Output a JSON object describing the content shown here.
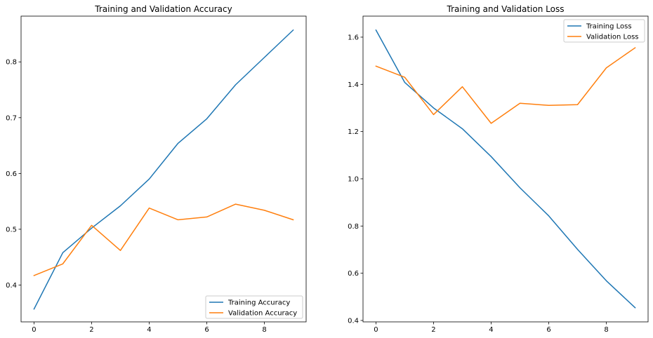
{
  "chart_data": [
    {
      "type": "line",
      "title": "Training and Validation Accuracy",
      "xlabel": "",
      "ylabel": "",
      "x": [
        0,
        1,
        2,
        3,
        4,
        5,
        6,
        7,
        8,
        9
      ],
      "xlim": [
        -0.45,
        9.45
      ],
      "ylim": [
        0.334,
        0.882
      ],
      "xticks": [
        0,
        2,
        4,
        6,
        8
      ],
      "yticks": [
        0.4,
        0.5,
        0.6,
        0.7,
        0.8
      ],
      "xtick_labels": [
        "0",
        "2",
        "4",
        "6",
        "8"
      ],
      "ytick_labels": [
        "0.4",
        "0.5",
        "0.6",
        "0.7",
        "0.8"
      ],
      "grid": false,
      "legend_position": "lower right",
      "series": [
        {
          "name": "Training Accuracy",
          "color": "#1f77b4",
          "values": [
            0.357,
            0.458,
            0.502,
            0.542,
            0.59,
            0.654,
            0.698,
            0.759,
            0.808,
            0.857
          ]
        },
        {
          "name": "Validation Accuracy",
          "color": "#ff7f0e",
          "values": [
            0.417,
            0.438,
            0.507,
            0.462,
            0.538,
            0.517,
            0.522,
            0.545,
            0.534,
            0.517
          ]
        }
      ]
    },
    {
      "type": "line",
      "title": "Training and Validation Loss",
      "xlabel": "",
      "ylabel": "",
      "x": [
        0,
        1,
        2,
        3,
        4,
        5,
        6,
        7,
        8,
        9
      ],
      "xlim": [
        -0.45,
        9.45
      ],
      "ylim": [
        0.394,
        1.689
      ],
      "xticks": [
        0,
        2,
        4,
        6,
        8
      ],
      "yticks": [
        0.4,
        0.6,
        0.8,
        1.0,
        1.2,
        1.4,
        1.6
      ],
      "xtick_labels": [
        "0",
        "2",
        "4",
        "6",
        "8"
      ],
      "ytick_labels": [
        "0.4",
        "0.6",
        "0.8",
        "1.0",
        "1.2",
        "1.4",
        "1.6"
      ],
      "grid": false,
      "legend_position": "upper right",
      "series": [
        {
          "name": "Training Loss",
          "color": "#1f77b4",
          "values": [
            1.63,
            1.408,
            1.3,
            1.212,
            1.094,
            0.962,
            0.843,
            0.701,
            0.568,
            0.454
          ]
        },
        {
          "name": "Validation Loss",
          "color": "#ff7f0e",
          "values": [
            1.477,
            1.43,
            1.272,
            1.39,
            1.235,
            1.32,
            1.311,
            1.314,
            1.47,
            1.555
          ]
        }
      ]
    }
  ]
}
